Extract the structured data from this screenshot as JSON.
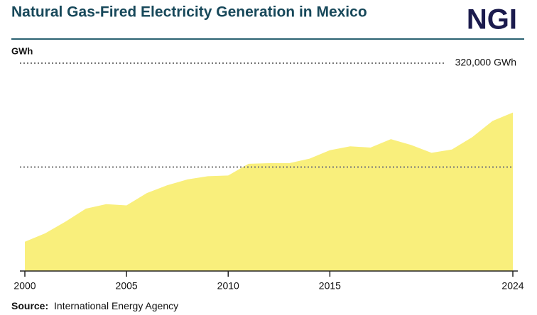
{
  "header": {
    "title": "Natural Gas-Fired Electricity Generation in Mexico",
    "logo": "NGI"
  },
  "chart_data": {
    "type": "area",
    "y_axis_label": "GWh",
    "x": [
      2000,
      2001,
      2002,
      2003,
      2004,
      2005,
      2006,
      2007,
      2008,
      2009,
      2010,
      2011,
      2012,
      2013,
      2014,
      2015,
      2016,
      2017,
      2018,
      2019,
      2020,
      2021,
      2022,
      2023,
      2024
    ],
    "values": [
      45000,
      58000,
      76000,
      96000,
      103000,
      101000,
      120000,
      132000,
      141000,
      146000,
      147000,
      165000,
      166000,
      166000,
      173000,
      186000,
      192000,
      190000,
      203000,
      194000,
      182000,
      187000,
      206000,
      231000,
      244000
    ],
    "color": "#f9ef7c",
    "xlim": [
      2000,
      2024
    ],
    "xticks": [
      2000,
      2005,
      2010,
      2015,
      2024
    ],
    "ylim": [
      0,
      320000
    ],
    "gridlines": [
      160000,
      320000
    ],
    "yticks": [
      {
        "value": 320000,
        "label": "320,000 GWh"
      }
    ]
  },
  "source": {
    "label": "Source:",
    "text": "International Energy Agency"
  }
}
